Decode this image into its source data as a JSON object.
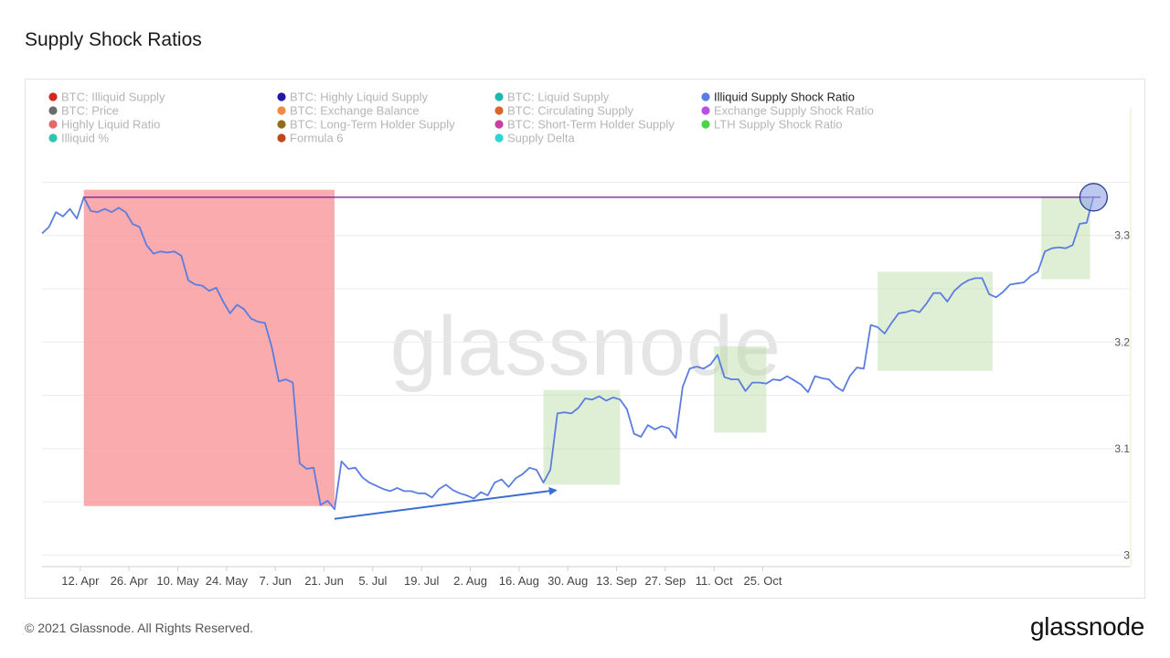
{
  "page": {
    "title": "Supply Shock Ratios",
    "footer": "© 2021 Glassnode. All Rights Reserved.",
    "brand": "glassnode",
    "watermark": "glassnode"
  },
  "legend": [
    {
      "label": "BTC: Illiquid Supply",
      "color": "#d7261e",
      "active": false
    },
    {
      "label": "BTC: Highly Liquid Supply",
      "color": "#1f1aa0",
      "active": false
    },
    {
      "label": "BTC: Liquid Supply",
      "color": "#21b5b0",
      "active": false
    },
    {
      "label": "Illiquid Supply Shock Ratio",
      "color": "#5b7de0",
      "active": true
    },
    {
      "label": "BTC: Price",
      "color": "#6b6b6b",
      "active": false
    },
    {
      "label": "BTC: Exchange Balance",
      "color": "#ef8a45",
      "active": false
    },
    {
      "label": "BTC: Circulating Supply",
      "color": "#d8662b",
      "active": false
    },
    {
      "label": "Exchange Supply Shock Ratio",
      "color": "#bb4fe0",
      "active": false
    },
    {
      "label": "Highly Liquid Ratio",
      "color": "#e26a6a",
      "active": false
    },
    {
      "label": "BTC: Long-Term Holder Supply",
      "color": "#8d6d1e",
      "active": false
    },
    {
      "label": "BTC: Short-Term Holder Supply",
      "color": "#c93fa0",
      "active": false
    },
    {
      "label": "LTH Supply Shock Ratio",
      "color": "#4fd04f",
      "active": false
    },
    {
      "label": "Illiquid %",
      "color": "#2ec4b0",
      "active": false
    },
    {
      "label": "Formula 6",
      "color": "#b84a1e",
      "active": false
    },
    {
      "label": "Supply Delta",
      "color": "#31d3d3",
      "active": false
    }
  ],
  "chart_data": {
    "type": "line",
    "series": [
      {
        "name": "Illiquid Supply Shock Ratio",
        "color": "#5b7de0",
        "points": [
          [
            "2021-04-01",
            3.302
          ],
          [
            "2021-04-03",
            3.308
          ],
          [
            "2021-04-05",
            3.322
          ],
          [
            "2021-04-07",
            3.318
          ],
          [
            "2021-04-09",
            3.325
          ],
          [
            "2021-04-11",
            3.316
          ],
          [
            "2021-04-13",
            3.336
          ],
          [
            "2021-04-15",
            3.323
          ],
          [
            "2021-04-17",
            3.322
          ],
          [
            "2021-04-19",
            3.325
          ],
          [
            "2021-04-21",
            3.322
          ],
          [
            "2021-04-23",
            3.326
          ],
          [
            "2021-04-25",
            3.322
          ],
          [
            "2021-04-27",
            3.311
          ],
          [
            "2021-04-29",
            3.308
          ],
          [
            "2021-05-01",
            3.291
          ],
          [
            "2021-05-03",
            3.283
          ],
          [
            "2021-05-05",
            3.285
          ],
          [
            "2021-05-07",
            3.284
          ],
          [
            "2021-05-09",
            3.285
          ],
          [
            "2021-05-11",
            3.281
          ],
          [
            "2021-05-13",
            3.258
          ],
          [
            "2021-05-15",
            3.254
          ],
          [
            "2021-05-17",
            3.253
          ],
          [
            "2021-05-19",
            3.248
          ],
          [
            "2021-05-21",
            3.251
          ],
          [
            "2021-05-23",
            3.238
          ],
          [
            "2021-05-25",
            3.227
          ],
          [
            "2021-05-27",
            3.235
          ],
          [
            "2021-05-29",
            3.231
          ],
          [
            "2021-05-31",
            3.222
          ],
          [
            "2021-06-02",
            3.219
          ],
          [
            "2021-06-04",
            3.218
          ],
          [
            "2021-06-06",
            3.195
          ],
          [
            "2021-06-08",
            3.163
          ],
          [
            "2021-06-10",
            3.165
          ],
          [
            "2021-06-12",
            3.162
          ],
          [
            "2021-06-14",
            3.086
          ],
          [
            "2021-06-16",
            3.081
          ],
          [
            "2021-06-18",
            3.082
          ],
          [
            "2021-06-20",
            3.047
          ],
          [
            "2021-06-22",
            3.051
          ],
          [
            "2021-06-24",
            3.043
          ],
          [
            "2021-06-26",
            3.088
          ],
          [
            "2021-06-28",
            3.081
          ],
          [
            "2021-06-30",
            3.082
          ],
          [
            "2021-07-02",
            3.073
          ],
          [
            "2021-07-04",
            3.068
          ],
          [
            "2021-07-06",
            3.065
          ],
          [
            "2021-07-08",
            3.062
          ],
          [
            "2021-07-10",
            3.06
          ],
          [
            "2021-07-12",
            3.063
          ],
          [
            "2021-07-14",
            3.06
          ],
          [
            "2021-07-16",
            3.06
          ],
          [
            "2021-07-18",
            3.058
          ],
          [
            "2021-07-20",
            3.058
          ],
          [
            "2021-07-22",
            3.054
          ],
          [
            "2021-07-24",
            3.062
          ],
          [
            "2021-07-26",
            3.066
          ],
          [
            "2021-07-28",
            3.061
          ],
          [
            "2021-07-30",
            3.058
          ],
          [
            "2021-08-01",
            3.056
          ],
          [
            "2021-08-03",
            3.053
          ],
          [
            "2021-08-05",
            3.059
          ],
          [
            "2021-08-07",
            3.056
          ],
          [
            "2021-08-09",
            3.068
          ],
          [
            "2021-08-11",
            3.071
          ],
          [
            "2021-08-13",
            3.064
          ],
          [
            "2021-08-15",
            3.072
          ],
          [
            "2021-08-17",
            3.076
          ],
          [
            "2021-08-19",
            3.082
          ],
          [
            "2021-08-21",
            3.08
          ],
          [
            "2021-08-23",
            3.068
          ],
          [
            "2021-08-25",
            3.08
          ],
          [
            "2021-08-27",
            3.133
          ],
          [
            "2021-08-29",
            3.134
          ],
          [
            "2021-08-31",
            3.133
          ],
          [
            "2021-09-02",
            3.138
          ],
          [
            "2021-09-04",
            3.147
          ],
          [
            "2021-09-06",
            3.146
          ],
          [
            "2021-09-08",
            3.149
          ],
          [
            "2021-09-10",
            3.145
          ],
          [
            "2021-09-12",
            3.148
          ],
          [
            "2021-09-14",
            3.146
          ],
          [
            "2021-09-16",
            3.137
          ],
          [
            "2021-09-18",
            3.114
          ],
          [
            "2021-09-20",
            3.111
          ],
          [
            "2021-09-22",
            3.122
          ],
          [
            "2021-09-24",
            3.118
          ],
          [
            "2021-09-26",
            3.121
          ],
          [
            "2021-09-28",
            3.119
          ],
          [
            "2021-09-30",
            3.11
          ],
          [
            "2021-10-02",
            3.158
          ],
          [
            "2021-10-04",
            3.175
          ],
          [
            "2021-10-06",
            3.177
          ],
          [
            "2021-10-08",
            3.175
          ],
          [
            "2021-10-10",
            3.179
          ],
          [
            "2021-10-12",
            3.188
          ],
          [
            "2021-10-14",
            3.167
          ],
          [
            "2021-10-16",
            3.165
          ],
          [
            "2021-10-18",
            3.165
          ],
          [
            "2021-10-20",
            3.154
          ],
          [
            "2021-10-22",
            3.162
          ],
          [
            "2021-10-24",
            3.162
          ],
          [
            "2021-10-26",
            3.161
          ],
          [
            "2021-10-28",
            3.165
          ],
          [
            "2021-10-30",
            3.164
          ],
          [
            "2021-11-01",
            3.168
          ],
          [
            "2021-11-03",
            3.164
          ],
          [
            "2021-11-05",
            3.16
          ],
          [
            "2021-11-07",
            3.153
          ],
          [
            "2021-11-09",
            3.168
          ],
          [
            "2021-11-11",
            3.166
          ],
          [
            "2021-11-13",
            3.165
          ],
          [
            "2021-11-15",
            3.158
          ],
          [
            "2021-11-17",
            3.154
          ],
          [
            "2021-11-19",
            3.168
          ],
          [
            "2021-11-21",
            3.176
          ],
          [
            "2021-11-23",
            3.175
          ],
          [
            "2021-11-25",
            3.216
          ],
          [
            "2021-11-27",
            3.214
          ],
          [
            "2021-11-29",
            3.208
          ],
          [
            "2021-12-01",
            3.218
          ],
          [
            "2021-12-03",
            3.227
          ],
          [
            "2021-12-05",
            3.228
          ],
          [
            "2021-12-07",
            3.23
          ],
          [
            "2021-12-09",
            3.228
          ],
          [
            "2021-12-11",
            3.236
          ],
          [
            "2021-12-13",
            3.246
          ],
          [
            "2021-12-15",
            3.246
          ],
          [
            "2021-12-17",
            3.238
          ],
          [
            "2021-12-19",
            3.248
          ],
          [
            "2021-12-21",
            3.254
          ],
          [
            "2021-12-23",
            3.258
          ],
          [
            "2021-12-25",
            3.26
          ],
          [
            "2021-12-27",
            3.26
          ],
          [
            "2021-12-29",
            3.245
          ],
          [
            "2021-12-31",
            3.242
          ],
          [
            "2022-01-02",
            3.247
          ],
          [
            "2022-01-04",
            3.254
          ],
          [
            "2022-01-06",
            3.255
          ],
          [
            "2022-01-08",
            3.256
          ],
          [
            "2022-01-10",
            3.262
          ],
          [
            "2022-01-12",
            3.266
          ],
          [
            "2022-01-14",
            3.285
          ],
          [
            "2022-01-16",
            3.288
          ],
          [
            "2022-01-18",
            3.289
          ],
          [
            "2022-01-20",
            3.288
          ],
          [
            "2022-01-22",
            3.291
          ],
          [
            "2022-01-24",
            3.311
          ],
          [
            "2022-01-26",
            3.312
          ],
          [
            "2022-01-28",
            3.337
          ]
        ]
      },
      {
        "name": "Exchange Supply Shock Ratio",
        "color": "#7a2a8f",
        "points": [
          [
            "2021-04-13",
            3.336
          ],
          [
            "2022-01-30",
            3.336
          ]
        ]
      }
    ],
    "x_ticks": [
      "12. Apr",
      "26. Apr",
      "10. May",
      "24. May",
      "7. Jun",
      "21. Jun",
      "5. Jul",
      "19. Jul",
      "2. Aug",
      "16. Aug",
      "30. Aug",
      "13. Sep",
      "27. Sep",
      "11. Oct",
      "25. Oct"
    ],
    "x_tick_dates": [
      "2021-04-12",
      "2021-04-26",
      "2021-05-10",
      "2021-05-24",
      "2021-06-07",
      "2021-06-21",
      "2021-07-05",
      "2021-07-19",
      "2021-08-02",
      "2021-08-16",
      "2021-08-30",
      "2021-09-13",
      "2021-09-27",
      "2021-10-11",
      "2021-10-25"
    ],
    "y_ticks": [
      3,
      3.1,
      3.2,
      3.3
    ],
    "ylim": [
      2.99,
      3.365
    ],
    "xlim": [
      "2021-04-01",
      "2022-01-30"
    ],
    "grid": true,
    "highlights": [
      {
        "kind": "decline",
        "color": "#f78f93",
        "opacity": 0.75,
        "x0": "2021-04-13",
        "x1": "2021-06-24",
        "y0": 3.046,
        "y1": 3.343
      },
      {
        "kind": "rise",
        "color": "#b9dba3",
        "opacity": 0.45,
        "x0": "2021-08-23",
        "x1": "2021-09-14",
        "y0": 3.066,
        "y1": 3.155
      },
      {
        "kind": "rise",
        "color": "#b9dba3",
        "opacity": 0.45,
        "x0": "2021-10-11",
        "x1": "2021-10-26",
        "y0": 3.115,
        "y1": 3.196
      },
      {
        "kind": "rise",
        "color": "#b9dba3",
        "opacity": 0.45,
        "x0": "2021-11-27",
        "x1": "2021-12-30",
        "y0": 3.173,
        "y1": 3.266
      },
      {
        "kind": "rise",
        "color": "#b9dba3",
        "opacity": 0.45,
        "x0": "2022-01-13",
        "x1": "2022-01-27",
        "y0": 3.259,
        "y1": 3.337
      }
    ],
    "arrow": {
      "x0": "2021-06-24",
      "y0": 3.034,
      "x1": "2021-08-27",
      "y1": 3.061,
      "color": "#3a6fcf"
    },
    "marker": {
      "x": "2022-01-28",
      "y": 3.336,
      "color": "#4a62c8"
    }
  }
}
